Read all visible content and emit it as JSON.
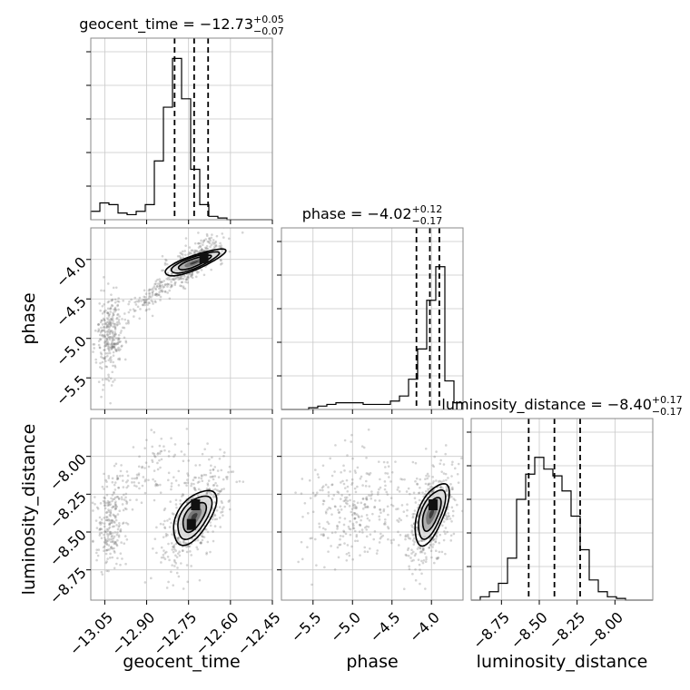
{
  "chart_data": {
    "type": "corner",
    "parameters": [
      "geocent_time",
      "phase",
      "luminosity_distance"
    ],
    "axis_labels": {
      "x": [
        "geocent_time",
        "phase",
        "luminosity_distance"
      ],
      "y": [
        "phase",
        "luminosity_distance"
      ]
    },
    "axis_ranges": {
      "geocent_time": [
        -13.1,
        -12.45
      ],
      "phase": [
        -5.9,
        -3.6
      ],
      "luminosity_distance": [
        -8.95,
        -7.75
      ]
    },
    "ticks": {
      "geocent_time": {
        "values": [
          -13.05,
          -12.9,
          -12.75,
          -12.6,
          -12.45
        ],
        "labels": [
          "−13.05",
          "−12.90",
          "−12.75",
          "−12.60",
          "−12.45"
        ]
      },
      "phase": {
        "values": [
          -5.5,
          -5.0,
          -4.5,
          -4.0
        ],
        "labels": [
          "−5.5",
          "−5.0",
          "−4.5",
          "−4.0"
        ]
      },
      "luminosity_distance": {
        "values": [
          -8.75,
          -8.5,
          -8.25,
          -8.0
        ],
        "labels": [
          "−8.75",
          "−8.50",
          "−8.25",
          "−8.00"
        ]
      }
    },
    "marginal_titles": [
      {
        "text": "geocent_time = −12.73",
        "plus": "+0.05",
        "minus": "−0.07"
      },
      {
        "text": "phase = −4.02",
        "plus": "+0.12",
        "minus": "−0.17"
      },
      {
        "text": "luminosity_distance = −8.40",
        "plus": "+0.17",
        "minus": "−0.17"
      }
    ],
    "quantiles": {
      "geocent_time": [
        -12.8,
        -12.73,
        -12.68
      ],
      "phase": [
        -4.19,
        -4.02,
        -3.9
      ],
      "luminosity_distance": [
        -8.57,
        -8.4,
        -8.23
      ]
    },
    "histograms": {
      "geocent_time": {
        "range": [
          -13.1,
          -12.45
        ],
        "counts": [
          0.05,
          0.1,
          0.09,
          0.04,
          0.03,
          0.05,
          0.09,
          0.35,
          0.67,
          0.96,
          0.72,
          0.3,
          0.09,
          0.02,
          0.01,
          0,
          0,
          0,
          0,
          0
        ]
      },
      "phase": {
        "range": [
          -5.9,
          -3.6
        ],
        "counts": [
          0,
          0,
          0,
          0.01,
          0.02,
          0.03,
          0.04,
          0.04,
          0.04,
          0.03,
          0.03,
          0.03,
          0.05,
          0.08,
          0.18,
          0.36,
          0.65,
          0.85,
          0.17,
          0.04
        ]
      },
      "luminosity_distance": {
        "range": [
          -8.95,
          -7.75
        ],
        "counts": [
          0,
          0.02,
          0.05,
          0.1,
          0.25,
          0.6,
          0.75,
          0.85,
          0.78,
          0.74,
          0.65,
          0.5,
          0.3,
          0.12,
          0.05,
          0.02,
          0.01,
          0,
          0,
          0
        ]
      }
    },
    "grid": true,
    "legend": "none"
  }
}
